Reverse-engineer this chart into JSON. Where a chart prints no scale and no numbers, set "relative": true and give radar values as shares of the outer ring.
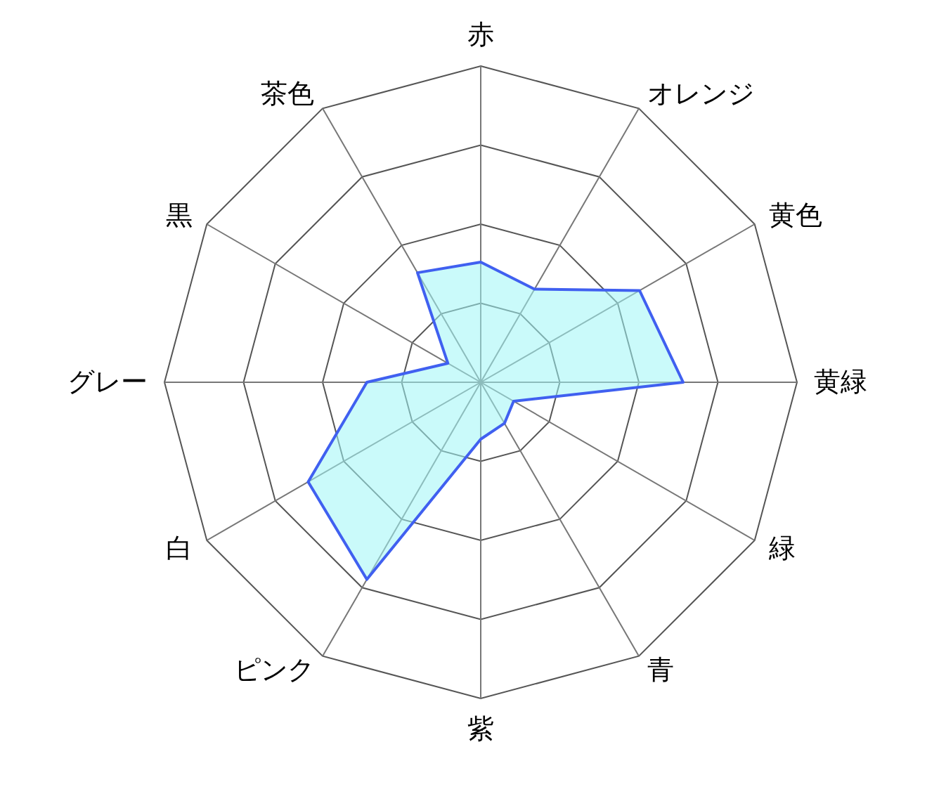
{
  "chart_data": {
    "type": "radar",
    "relative": true,
    "grid": true,
    "categories": [
      "赤",
      "オレンジ",
      "黄色",
      "黄緑",
      "緑",
      "青",
      "紫",
      "ピンク",
      "白",
      "グレー",
      "黒",
      "茶色"
    ],
    "series": [
      {
        "color": "#4060f0",
        "values": [
          0.38,
          0.34,
          0.58,
          0.64,
          0.12,
          0.15,
          0.18,
          0.72,
          0.63,
          0.36,
          0.12,
          0.4
        ]
      }
    ]
  }
}
